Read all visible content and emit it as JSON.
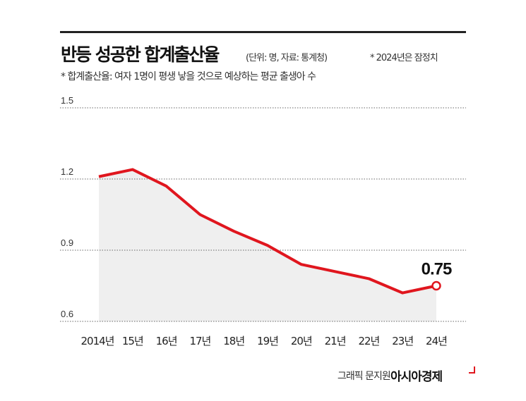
{
  "header": {
    "title": "반등 성공한 합계출산율",
    "unit_source": "(단위: 명, 자료: 통계청)",
    "note_provisional": "* 2024년은 잠정치",
    "definition": "* 합계출산율: 여자 1명이 평생 낳을 것으로 예상하는 평균 출생아 수"
  },
  "chart_data": {
    "type": "area",
    "title": "반등 성공한 합계출산율",
    "categories": [
      "2014년",
      "15년",
      "16년",
      "17년",
      "18년",
      "19년",
      "20년",
      "21년",
      "22년",
      "23년",
      "24년"
    ],
    "values": [
      1.21,
      1.24,
      1.17,
      1.05,
      0.98,
      0.92,
      0.84,
      0.81,
      0.78,
      0.72,
      0.75
    ],
    "ylim": [
      0.6,
      1.5
    ],
    "yticks": [
      "1.5",
      "1.2",
      "0.9",
      "0.6"
    ],
    "grid": true,
    "annotation": "0.75",
    "line_color": "#e0161e",
    "fill_color": "#efefef"
  },
  "footer": {
    "credit": "그래픽 문지원",
    "logo": "아시아경제"
  }
}
